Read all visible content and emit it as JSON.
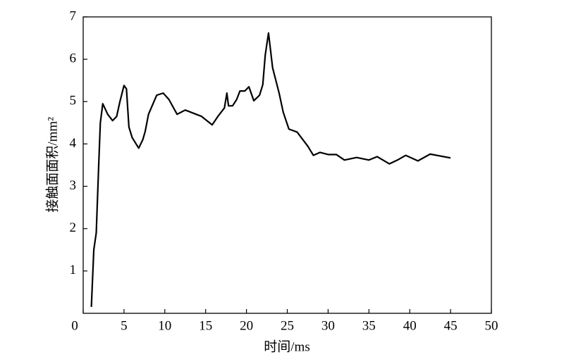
{
  "chart_data": {
    "type": "line",
    "x_label": "时间/ms",
    "y_label": "接触面面积/mm²",
    "xlim": [
      0,
      50
    ],
    "xticks": [
      0,
      5,
      10,
      15,
      20,
      25,
      30,
      35,
      40,
      45,
      50
    ],
    "ylim": [
      0,
      7
    ],
    "yticks": [
      1,
      2,
      3,
      4,
      5,
      6,
      7
    ],
    "grid": false,
    "x": [
      1.0,
      1.3,
      1.6,
      1.9,
      2.1,
      2.4,
      3.0,
      3.6,
      4.1,
      4.5,
      5.0,
      5.3,
      5.6,
      6.0,
      6.8,
      7.3,
      7.6,
      8.0,
      9.0,
      9.8,
      10.5,
      11.5,
      12.5,
      14.5,
      15.8,
      16.5,
      17.3,
      17.6,
      17.8,
      18.3,
      18.8,
      19.2,
      19.8,
      20.3,
      20.9,
      21.6,
      22.0,
      22.3,
      22.7,
      23.2,
      24.0,
      24.5,
      25.2,
      26.2,
      27.5,
      28.2,
      29.0,
      30.0,
      31.0,
      32.0,
      33.5,
      35.0,
      36.0,
      37.5,
      38.5,
      39.5,
      41.0,
      42.5,
      45.0
    ],
    "series": [
      {
        "color": "#000000",
        "values": [
          0.15,
          1.5,
          1.9,
          3.5,
          4.5,
          4.95,
          4.7,
          4.55,
          4.65,
          5.0,
          5.38,
          5.3,
          4.4,
          4.15,
          3.9,
          4.1,
          4.3,
          4.7,
          5.15,
          5.2,
          5.05,
          4.7,
          4.8,
          4.65,
          4.45,
          4.65,
          4.85,
          5.2,
          4.9,
          4.9,
          5.05,
          5.25,
          5.25,
          5.35,
          5.02,
          5.15,
          5.4,
          6.1,
          6.62,
          5.8,
          5.2,
          4.75,
          4.35,
          4.28,
          3.95,
          3.73,
          3.8,
          3.75,
          3.75,
          3.62,
          3.68,
          3.62,
          3.7,
          3.53,
          3.62,
          3.73,
          3.6,
          3.76,
          3.67
        ]
      }
    ]
  }
}
